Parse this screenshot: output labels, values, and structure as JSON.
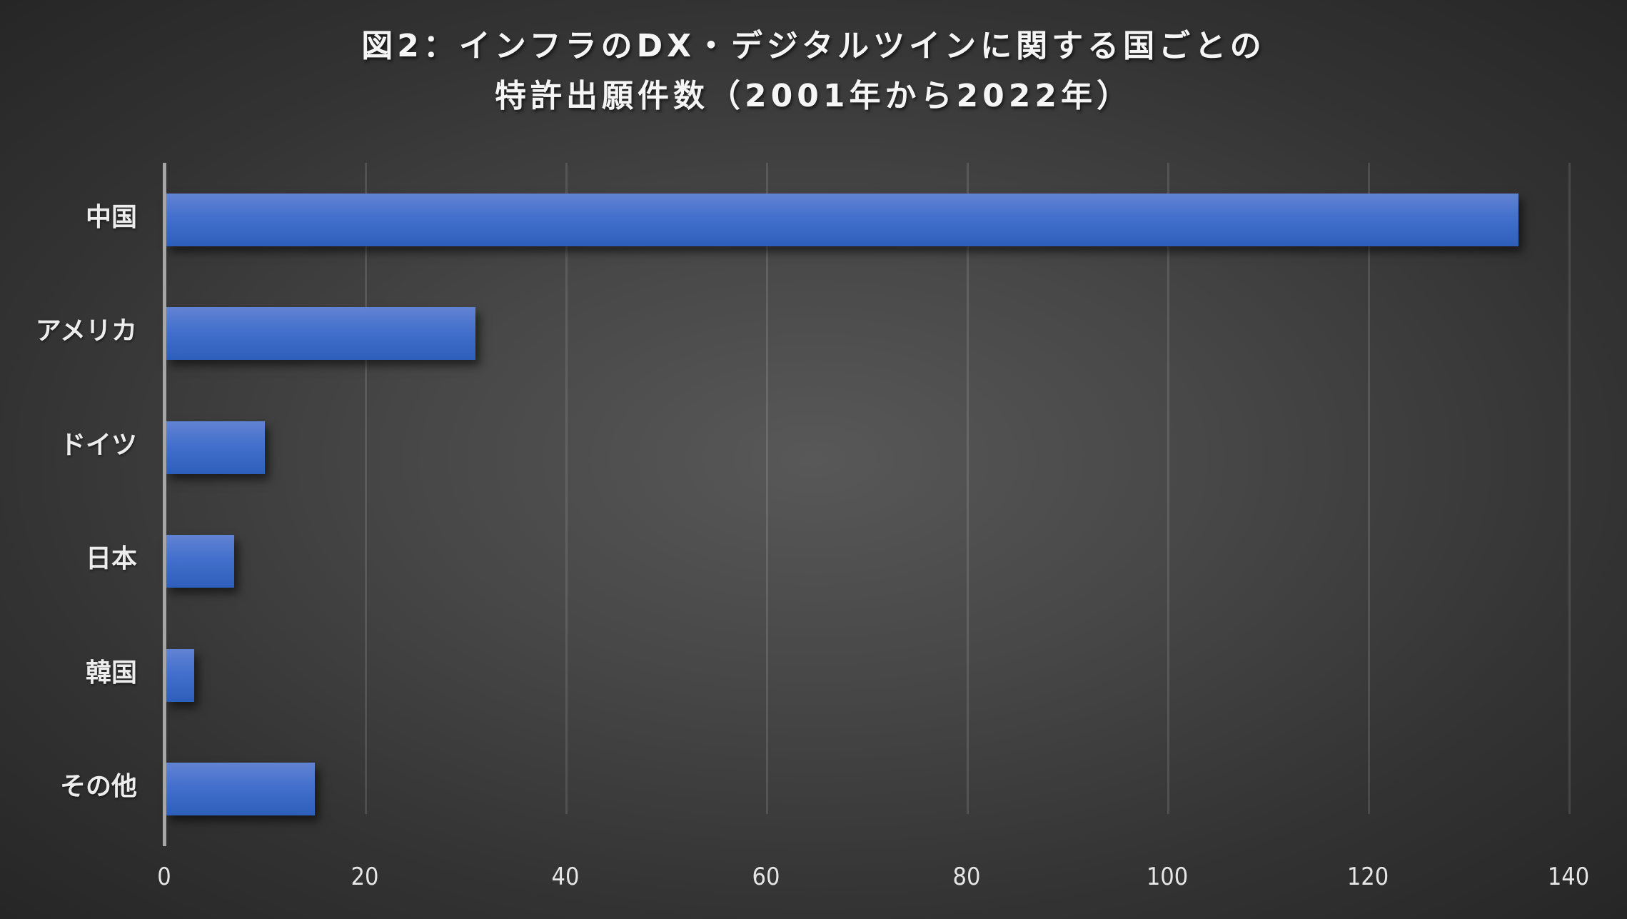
{
  "title": {
    "line1": "図2：インフラのDX・デジタルツインに関する国ごとの",
    "line2": "特許出願件数（2001年から2022年）"
  },
  "chart_data": {
    "type": "bar",
    "orientation": "horizontal",
    "title": "図2：インフラのDX・デジタルツインに関する国ごとの特許出願件数（2001年から2022年）",
    "categories": [
      "中国",
      "アメリカ",
      "ドイツ",
      "日本",
      "韓国",
      "その他"
    ],
    "values": [
      135,
      31,
      10,
      7,
      3,
      15
    ],
    "xlabel": "",
    "ylabel": "",
    "xlim": [
      0,
      140
    ],
    "xticks": [
      "0",
      "20",
      "40",
      "60",
      "80",
      "100",
      "120",
      "140"
    ],
    "grid": "vertical",
    "legend": "none",
    "bar_color": "#3f6cc8"
  }
}
